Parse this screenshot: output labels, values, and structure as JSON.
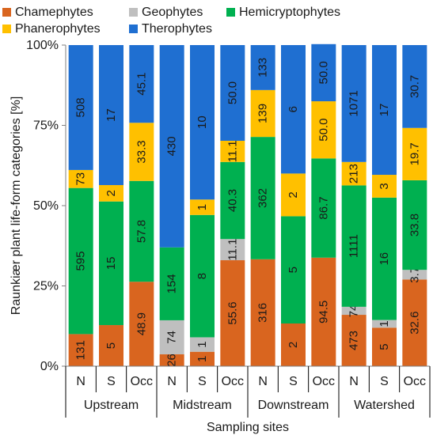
{
  "chart_data": {
    "type": "bar",
    "stacked": true,
    "percent_stacked": true,
    "xlabel": "Sampling sites",
    "ylabel": "Raunkiær plant life-form categories  [%]",
    "yticks": [
      "0%",
      "25%",
      "50%",
      "75%",
      "100%"
    ],
    "ylim": [
      0,
      100
    ],
    "legend_position": "top",
    "categories": [
      "N",
      "S",
      "Occ",
      "N",
      "S",
      "Occ",
      "N",
      "S",
      "Occ",
      "N",
      "S",
      "Occ"
    ],
    "groups": [
      {
        "name": "Upstream",
        "span": 3
      },
      {
        "name": "Midstream",
        "span": 3
      },
      {
        "name": "Downstream",
        "span": 3
      },
      {
        "name": "Watershed",
        "span": 3
      }
    ],
    "series": [
      {
        "name": "Chamephytes",
        "color": "#d9651f",
        "labels": [
          "131",
          "5",
          "48.9",
          "26",
          "1",
          "55.6",
          "316",
          "2",
          "94.5",
          "473",
          "5",
          "32.6"
        ],
        "values": [
          10.0,
          12.8,
          26.3,
          3.7,
          4.5,
          33.0,
          33.3,
          13.3,
          33.8,
          16.0,
          12.0,
          27.0
        ]
      },
      {
        "name": "Geophytes",
        "color": "#bfbfbf",
        "labels": [
          "",
          "",
          "",
          "74",
          "1",
          "11.1",
          "",
          "",
          "",
          "74",
          "1",
          "3.7"
        ],
        "values": [
          0,
          0,
          0,
          10.6,
          4.5,
          6.6,
          0,
          0,
          0,
          2.5,
          2.4,
          3.0
        ]
      },
      {
        "name": "Hemicryptophytes",
        "color": "#00b050",
        "labels": [
          "595",
          "15",
          "57.8",
          "154",
          "8",
          "40.3",
          "362",
          "5",
          "86.7",
          "1111",
          "16",
          "33.8"
        ],
        "values": [
          45.5,
          38.5,
          31.4,
          22.7,
          38.1,
          24.0,
          38.1,
          33.4,
          30.9,
          37.8,
          38.1,
          27.9
        ]
      },
      {
        "name": "Phanerophytes",
        "color": "#ffc000",
        "labels": [
          "73",
          "2",
          "33.3",
          "",
          "1",
          "11.1",
          "139",
          "2",
          "50.0",
          "213",
          "3",
          "19.7"
        ],
        "values": [
          5.6,
          5.1,
          18.1,
          0,
          4.8,
          6.6,
          14.6,
          13.3,
          17.8,
          7.3,
          7.1,
          16.3
        ]
      },
      {
        "name": "Therophytes",
        "color": "#1f6fd1",
        "labels": [
          "508",
          "17",
          "45.1",
          "430",
          "10",
          "50.0",
          "133",
          "6",
          "50.0",
          "1071",
          "17",
          "30.7"
        ],
        "values": [
          38.9,
          43.6,
          24.2,
          63.0,
          48.1,
          29.8,
          14.0,
          40.0,
          17.8,
          36.4,
          40.4,
          25.8
        ]
      }
    ]
  }
}
